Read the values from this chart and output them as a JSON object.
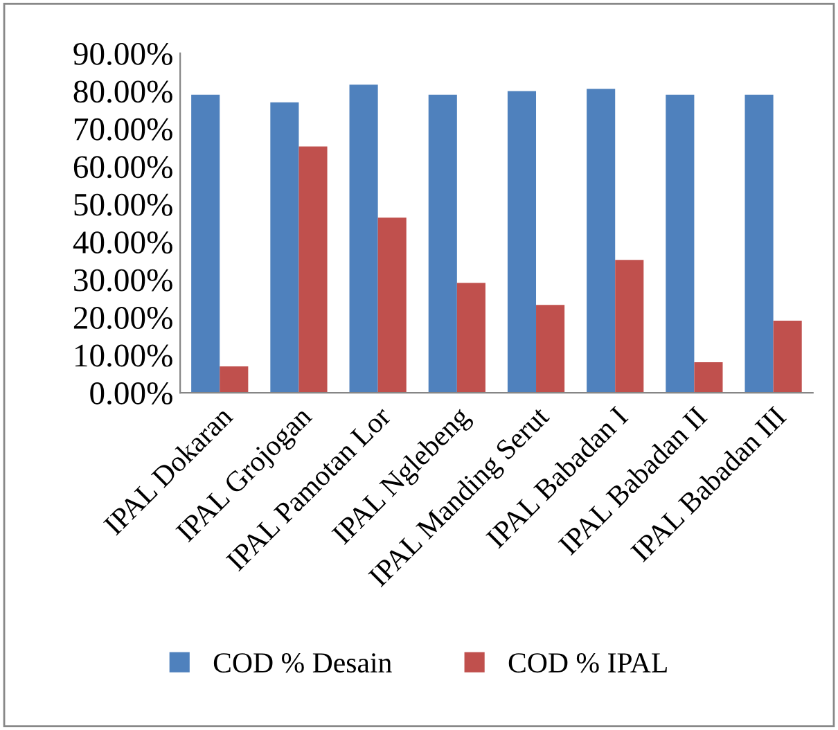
{
  "chart_data": {
    "type": "bar",
    "categories": [
      "IPAL Dokaran",
      "IPAL Grojogan",
      "IPAL Pamotan Lor",
      "IPAL Nglebeng",
      "IPAL Manding Serut",
      "IPAL Babadan I",
      "IPAL Babadan II",
      "IPAL Babadan III"
    ],
    "series": [
      {
        "name": "COD % Desain",
        "color": "#4f81bd",
        "values": [
          79,
          77,
          81.7,
          79,
          80,
          80.6,
          79,
          79
        ]
      },
      {
        "name": "COD % IPAL",
        "color": "#c0504d",
        "values": [
          7,
          65.3,
          46.4,
          29.1,
          23.3,
          35.2,
          8.1,
          19.1
        ]
      }
    ],
    "ylim": [
      0,
      90
    ],
    "yticks": [
      {
        "value": 0,
        "label": "0.00%"
      },
      {
        "value": 10,
        "label": "10.00%"
      },
      {
        "value": 20,
        "label": "20.00%"
      },
      {
        "value": 30,
        "label": "30.00%"
      },
      {
        "value": 40,
        "label": "40.00%"
      },
      {
        "value": 50,
        "label": "50.00%"
      },
      {
        "value": 60,
        "label": "60.00%"
      },
      {
        "value": 70,
        "label": "70.00%"
      },
      {
        "value": 80,
        "label": "80.00%"
      },
      {
        "value": 90,
        "label": "90.00%"
      }
    ],
    "grid": false,
    "legend": "bottom"
  }
}
